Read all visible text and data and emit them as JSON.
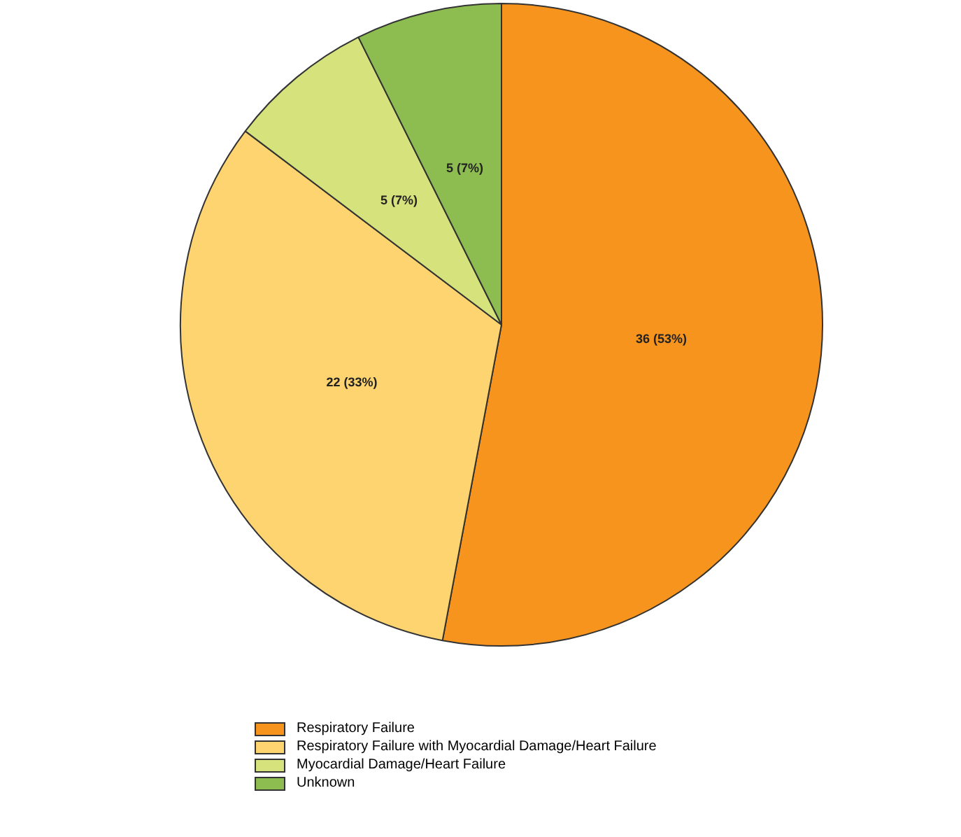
{
  "chart_data": {
    "type": "pie",
    "categories": [
      "Respiratory Failure",
      "Respiratory Failure with Myocardial Damage/Heart Failure",
      "Myocardial Damage/Heart Failure",
      "Unknown"
    ],
    "values": [
      36,
      22,
      5,
      5
    ],
    "colors": [
      "#f7941d",
      "#fdd46f",
      "#d6e27c",
      "#8dbd50"
    ],
    "value_labels": [
      "36 (53%)",
      "22 (33%)",
      "5 (7%)",
      "5 (7%)"
    ],
    "legend": "bottom"
  }
}
